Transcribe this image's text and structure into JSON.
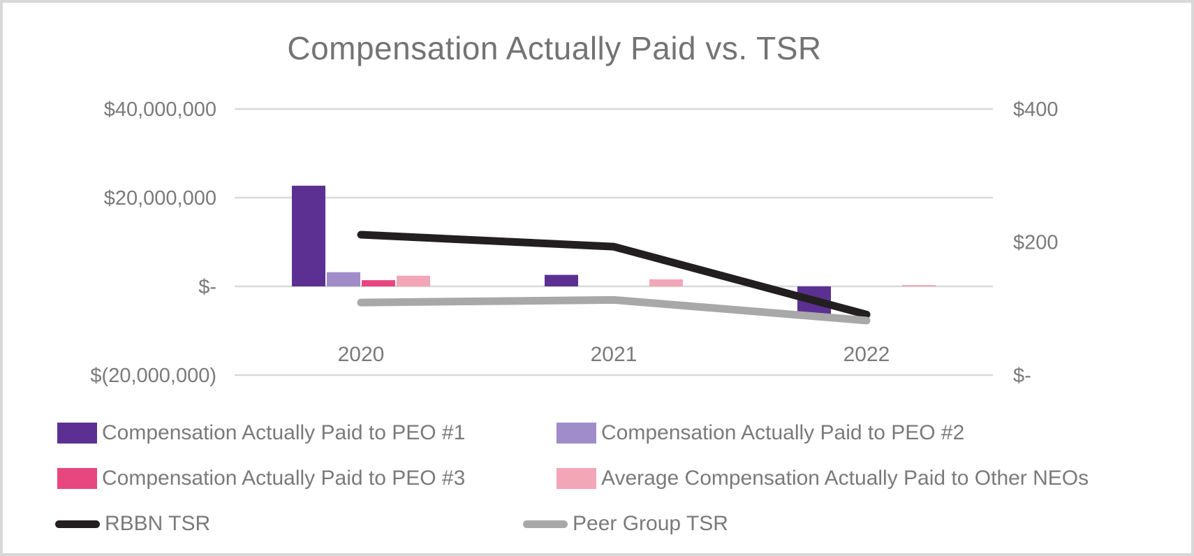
{
  "frame": {
    "background_color": "#ffffff",
    "border_color": "#d8d8d8"
  },
  "text_colors": {
    "title": "#737373",
    "axis_labels": "#7a7a7a",
    "gridline": "#d9d9d9"
  },
  "chart_data": {
    "type": "combo: clustered bar + line",
    "title": "Compensation Actually Paid vs. TSR",
    "categories": [
      "2020",
      "2021",
      "2022"
    ],
    "bar_series": [
      {
        "name": "Compensation Actually Paid to PEO #1",
        "color": "#5B3092",
        "axis": "left",
        "values": [
          22700000,
          2600000,
          -6300000
        ]
      },
      {
        "name": "Compensation Actually Paid to PEO #2",
        "color": "#A08CC9",
        "axis": "left",
        "values": [
          3200000,
          null,
          null
        ]
      },
      {
        "name": "Compensation Actually Paid to PEO #3",
        "color": "#E8467E",
        "axis": "left",
        "values": [
          1400000,
          null,
          null
        ]
      },
      {
        "name": "Average Compensation Actually Paid to Other NEOs",
        "color": "#F2A6B8",
        "axis": "left",
        "values": [
          2400000,
          1600000,
          300000
        ]
      }
    ],
    "line_series": [
      {
        "name": "RBBN TSR",
        "color": "#231F20",
        "axis": "right",
        "values": [
          211,
          193,
          91
        ]
      },
      {
        "name": "Peer Group TSR",
        "color": "#A8A8A8",
        "axis": "right",
        "values": [
          109,
          113,
          82
        ]
      }
    ],
    "left_axis": {
      "min": -20000000,
      "max": 40000000,
      "ticks": [
        {
          "label": "$40,000,000",
          "value": 40000000
        },
        {
          "label": "$20,000,000",
          "value": 20000000
        },
        {
          "label": "$-",
          "value": 0
        },
        {
          "label": "$(20,000,000)",
          "value": -20000000
        }
      ],
      "gridlines": true
    },
    "right_axis": {
      "min": 0,
      "max": 400,
      "ticks": [
        {
          "label": "$400",
          "value": 400
        },
        {
          "label": "$200",
          "value": 200
        },
        {
          "label": "$-",
          "value": 0
        }
      ]
    },
    "legend_position": "bottom"
  }
}
